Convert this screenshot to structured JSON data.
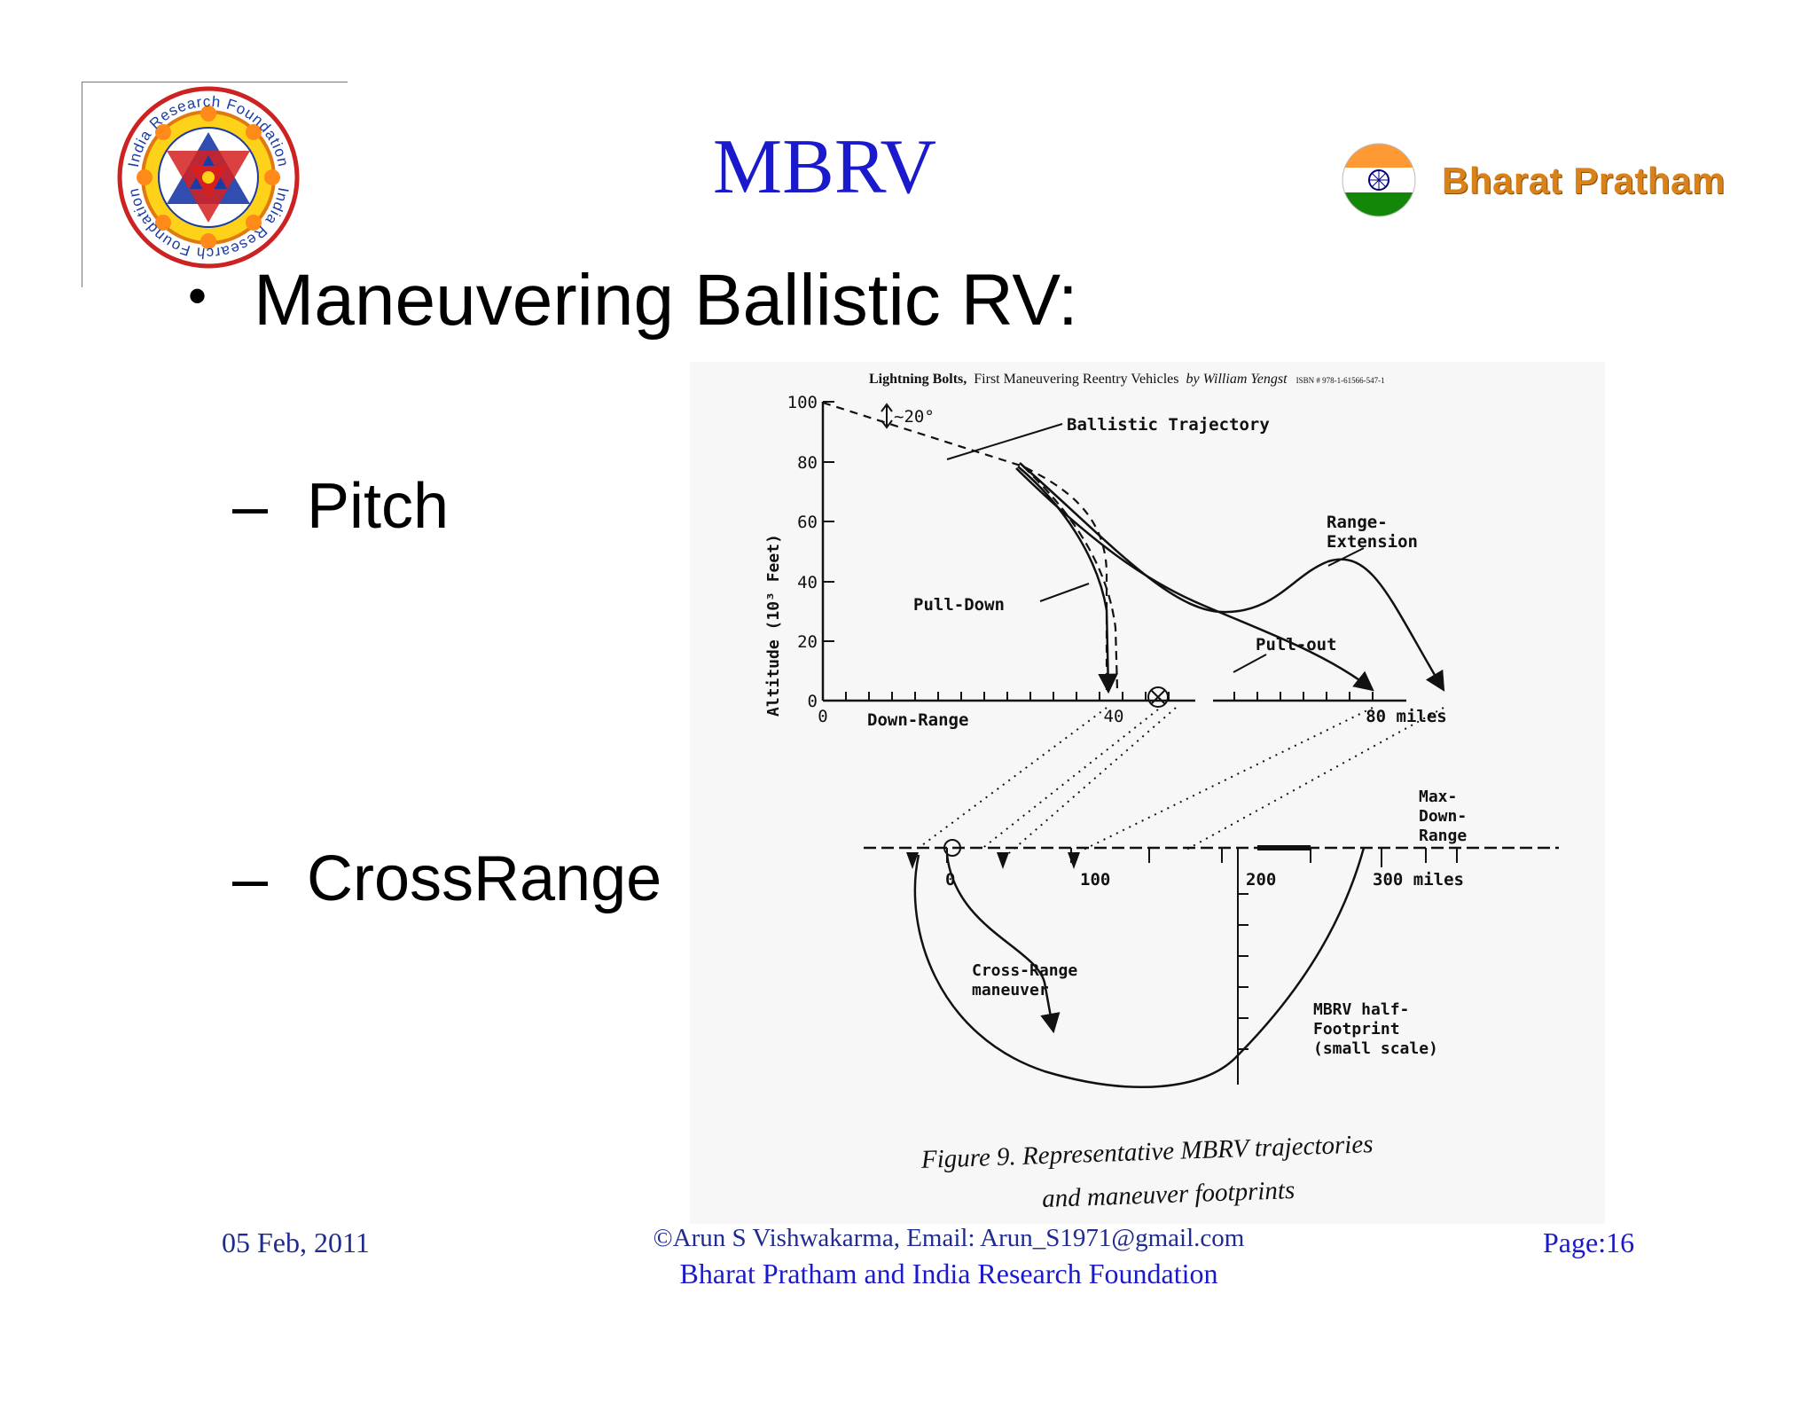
{
  "slide": {
    "title": "MBRV",
    "bullet": "Maneuvering Ballistic RV:",
    "subitems": [
      "Pitch",
      "CrossRange"
    ],
    "bullet_glyph": "•",
    "dash_glyph": "–"
  },
  "logos": {
    "left": {
      "name": "India Research Foundation seal",
      "text_top": "India Research Foundation",
      "text_bottom": "India Research Foundation"
    },
    "right": {
      "text": "Bharat Pratham",
      "colors": {
        "saffron": "#ff9933",
        "white": "#ffffff",
        "green": "#138808",
        "chakra": "#000080"
      }
    }
  },
  "figure": {
    "source_bold": "Lightning Bolts,",
    "source_rest": "First Maneuvering Reentry Vehicles",
    "source_author": "by William Yengst",
    "source_isbn": "ISBN # 978-1-61566-547-1",
    "top_plot": {
      "ylabel": "Altitude (10³ Feet)",
      "yticks": [
        "100",
        "80",
        "60",
        "40",
        "20",
        "0"
      ],
      "xticks": [
        "0",
        "40",
        "80 miles"
      ],
      "xlabel": "Down-Range",
      "angle_label": "~20°",
      "labels": {
        "ballistic": "Ballistic Trajectory",
        "range_ext_1": "Range-",
        "range_ext_2": "Extension",
        "pull_down": "Pull-Down",
        "pull_out": "Pull-out"
      }
    },
    "bottom_plot": {
      "xticks": [
        "0",
        "100",
        "200",
        "300 miles"
      ],
      "max_down_1": "Max-",
      "max_down_2": "Down-",
      "max_down_3": "Range",
      "cross_range_1": "Cross-Range",
      "cross_range_2": "maneuver",
      "footprint_1": "MBRV half-",
      "footprint_2": "Footprint",
      "footprint_3": "(small scale)"
    },
    "caption_1": "Figure 9. Representative MBRV trajectories",
    "caption_2": "and maneuver footprints"
  },
  "footer": {
    "date": "05 Feb, 2011",
    "copyright": "©Arun S Vishwakarma,  Email:  Arun_S1971@gmail.com",
    "organization": "Bharat Pratham and India Research Foundation",
    "page": "Page:16"
  },
  "colors": {
    "title": "#1a1acc",
    "footer": "#1f2b8f",
    "brand_orange": "#d9821a"
  }
}
